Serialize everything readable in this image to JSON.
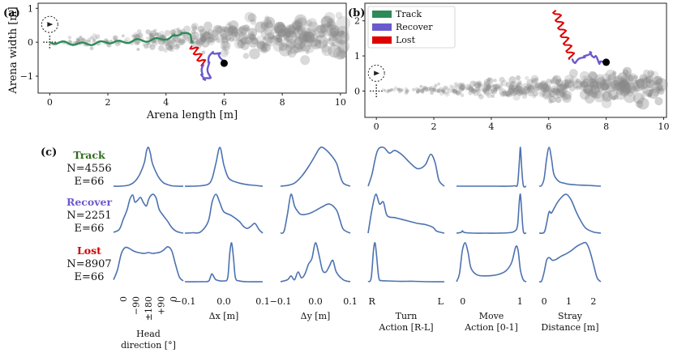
{
  "chart_data": [
    {
      "type": "scatter",
      "panel": "(a)",
      "xlabel": "Arena length [m]",
      "ylabel": "Arena width [m]",
      "xlim": [
        -0.4,
        10.2
      ],
      "ylim": [
        -1.5,
        1.15
      ],
      "xticks": [
        0,
        2,
        4,
        6,
        8,
        10
      ],
      "yticks": [
        -1,
        0,
        1
      ],
      "legend": "none",
      "series": [
        {
          "name": "Track",
          "color": "#2e8b57",
          "x": [
            0.0,
            0.5,
            1.0,
            1.5,
            2.0,
            2.5,
            3.0,
            3.5,
            4.0,
            4.3,
            4.55,
            4.8,
            4.95
          ],
          "y": [
            0.0,
            -0.02,
            -0.05,
            -0.04,
            0.01,
            0.0,
            0.05,
            0.06,
            0.12,
            0.18,
            0.3,
            0.2,
            0.0
          ]
        },
        {
          "name": "Lost",
          "color": "#e00000",
          "x": [
            4.9,
            5.0,
            5.1,
            5.2,
            5.3
          ],
          "y": [
            -0.1,
            -0.22,
            -0.37,
            -0.52,
            -0.65
          ]
        },
        {
          "name": "Recover",
          "color": "#6a5acd",
          "x": [
            5.3,
            5.25,
            5.3,
            5.5,
            5.45,
            5.6,
            5.85,
            6.0
          ],
          "y": [
            -0.65,
            -0.95,
            -1.12,
            -1.05,
            -0.6,
            -0.28,
            -0.35,
            -0.62
          ]
        }
      ],
      "end_marker": {
        "x": 6.0,
        "y": -0.62
      }
    },
    {
      "type": "scatter",
      "panel": "(b)",
      "xlabel": "",
      "ylabel": "",
      "xlim": [
        -0.4,
        10.1
      ],
      "ylim": [
        -0.75,
        2.5
      ],
      "xticks": [
        0,
        2,
        4,
        6,
        8,
        10
      ],
      "yticks": [
        0,
        1,
        2
      ],
      "legend": "top-left",
      "legend_entries": [
        "Track",
        "Recover",
        "Lost"
      ],
      "series": [
        {
          "name": "Lost",
          "color": "#e00000",
          "x": [
            6.25,
            6.38,
            6.52,
            6.68,
            6.82
          ],
          "y": [
            2.3,
            1.95,
            1.6,
            1.25,
            0.92
          ]
        },
        {
          "name": "Recover",
          "color": "#6a5acd",
          "x": [
            6.82,
            6.95,
            7.25,
            7.45,
            7.6,
            7.8,
            8.0
          ],
          "y": [
            0.92,
            0.82,
            0.97,
            1.12,
            0.97,
            0.8,
            0.82
          ]
        }
      ],
      "end_marker": {
        "x": 8.0,
        "y": 0.82
      }
    },
    {
      "type": "line",
      "panel": "(c)",
      "description_rows": [
        {
          "name": "Track",
          "n_label": "N=4556",
          "e_label": "E=66",
          "color": "#2e6b1e"
        },
        {
          "name": "Recover",
          "n_label": "N=2251",
          "e_label": "E=66",
          "color": "#6a5acd"
        },
        {
          "name": "Lost",
          "n_label": "N=8907",
          "e_label": "E=66",
          "color": "#d00000"
        }
      ],
      "columns": [
        {
          "xlabel": [
            "Head",
            "direction [°]"
          ],
          "xticks": [
            "0",
            "−90",
            "±180",
            "+90",
            "0"
          ],
          "xtick_rotation": 90,
          "xlim": [
            -180,
            180
          ]
        },
        {
          "xlabel": [
            "Δx [m]"
          ],
          "xticks": [
            "−0.1",
            "0.0",
            "0.1"
          ],
          "xlim": [
            -0.1,
            0.1
          ]
        },
        {
          "xlabel": [
            "Δy [m]"
          ],
          "xticks": [
            "−0.1",
            "0.0",
            "0.1"
          ],
          "xlim": [
            -0.1,
            0.1
          ]
        },
        {
          "xlabel": [
            "Turn",
            "Action [R-L]"
          ],
          "xticks": [
            "R",
            "L"
          ],
          "xlim": [
            0,
            1
          ]
        },
        {
          "xlabel": [
            "Move",
            "Action [0-1]"
          ],
          "xticks": [
            "0",
            "1"
          ],
          "xlim": [
            -0.1,
            1.1
          ]
        },
        {
          "xlabel": [
            "Stray",
            "Distance [m]"
          ],
          "xticks": [
            "0",
            "1",
            "2"
          ],
          "xlim": [
            -0.2,
            2.3
          ]
        }
      ],
      "density_curves": [
        [
          {
            "x": [
              -180,
              -150,
              -120,
              -100,
              -80,
              -60,
              -40,
              -20,
              -10,
              0,
              10,
              20,
              40,
              60,
              80,
              100,
              120,
              150,
              180
            ],
            "y": [
              0.0,
              0.0,
              0.01,
              0.03,
              0.08,
              0.18,
              0.35,
              0.62,
              0.9,
              1.0,
              0.85,
              0.6,
              0.35,
              0.18,
              0.08,
              0.04,
              0.01,
              0.0,
              0.0
            ]
          },
          {
            "x": [
              -180,
              -150,
              -130,
              -110,
              -95,
              -80,
              -70,
              -55,
              -40,
              -25,
              -10,
              0,
              10,
              25,
              40,
              55,
              70,
              85,
              100,
              120,
              140,
              160,
              180
            ],
            "y": [
              0.02,
              0.1,
              0.35,
              0.6,
              0.88,
              0.98,
              0.8,
              0.85,
              0.92,
              0.78,
              0.7,
              0.85,
              0.95,
              1.0,
              0.9,
              0.62,
              0.5,
              0.4,
              0.3,
              0.15,
              0.06,
              0.02,
              0.0
            ]
          },
          {
            "x": [
              -180,
              -160,
              -140,
              -120,
              -100,
              -80,
              -60,
              -40,
              -20,
              0,
              20,
              40,
              60,
              80,
              100,
              120,
              140,
              160,
              180
            ],
            "y": [
              0.05,
              0.3,
              0.72,
              0.88,
              0.86,
              0.8,
              0.76,
              0.74,
              0.73,
              0.75,
              0.73,
              0.74,
              0.76,
              0.82,
              0.9,
              0.8,
              0.45,
              0.12,
              0.02
            ]
          }
        ],
        [
          {
            "x": [
              -0.1,
              -0.08,
              -0.06,
              -0.04,
              -0.03,
              -0.02,
              -0.01,
              0.0,
              0.01,
              0.02,
              0.04,
              0.06,
              0.08,
              0.1
            ],
            "y": [
              0.0,
              0.0,
              0.01,
              0.05,
              0.2,
              0.6,
              1.0,
              0.55,
              0.25,
              0.15,
              0.08,
              0.04,
              0.02,
              0.0
            ]
          },
          {
            "x": [
              -0.1,
              -0.08,
              -0.06,
              -0.04,
              -0.03,
              -0.02,
              -0.01,
              0.0,
              0.02,
              0.04,
              0.05,
              0.06,
              0.07,
              0.08,
              0.09,
              0.1
            ],
            "y": [
              0.0,
              0.01,
              0.03,
              0.3,
              0.8,
              1.0,
              0.78,
              0.55,
              0.45,
              0.3,
              0.18,
              0.12,
              0.18,
              0.25,
              0.1,
              0.0
            ]
          },
          {
            "x": [
              -0.1,
              -0.06,
              -0.04,
              -0.035,
              -0.03,
              -0.02,
              0.0,
              0.01,
              0.015,
              0.02,
              0.025,
              0.03,
              0.04,
              0.06,
              0.1
            ],
            "y": [
              0.0,
              0.0,
              0.01,
              0.1,
              0.2,
              0.05,
              0.02,
              0.1,
              0.7,
              1.0,
              0.6,
              0.1,
              0.02,
              0.0,
              0.0
            ]
          }
        ],
        [
          {
            "x": [
              -0.1,
              -0.08,
              -0.06,
              -0.04,
              -0.02,
              0.0,
              0.01,
              0.02,
              0.04,
              0.06,
              0.07,
              0.08,
              0.1
            ],
            "y": [
              0.0,
              0.02,
              0.08,
              0.25,
              0.5,
              0.8,
              0.95,
              1.0,
              0.85,
              0.6,
              0.3,
              0.08,
              0.0
            ]
          },
          {
            "x": [
              -0.1,
              -0.09,
              -0.08,
              -0.07,
              -0.06,
              -0.05,
              -0.04,
              -0.02,
              0.0,
              0.02,
              0.04,
              0.06,
              0.07,
              0.08,
              0.1
            ],
            "y": [
              0.0,
              0.05,
              0.5,
              1.0,
              0.7,
              0.55,
              0.48,
              0.5,
              0.58,
              0.68,
              0.75,
              0.6,
              0.35,
              0.1,
              0.0
            ]
          },
          {
            "x": [
              -0.1,
              -0.08,
              -0.07,
              -0.06,
              -0.05,
              -0.04,
              -0.03,
              -0.02,
              -0.01,
              0.0,
              0.01,
              0.02,
              0.03,
              0.04,
              0.05,
              0.06,
              0.08,
              0.1
            ],
            "y": [
              0.0,
              0.05,
              0.15,
              0.05,
              0.25,
              0.1,
              0.2,
              0.45,
              0.6,
              1.0,
              0.7,
              0.3,
              0.25,
              0.4,
              0.55,
              0.25,
              0.05,
              0.0
            ]
          }
        ],
        [
          {
            "x": [
              0.0,
              0.05,
              0.12,
              0.2,
              0.28,
              0.35,
              0.45,
              0.55,
              0.65,
              0.75,
              0.82,
              0.88,
              0.93,
              1.0
            ],
            "y": [
              0.0,
              0.3,
              0.9,
              1.0,
              0.85,
              0.92,
              0.8,
              0.6,
              0.45,
              0.55,
              0.82,
              0.6,
              0.15,
              0.0
            ]
          },
          {
            "x": [
              0.0,
              0.05,
              0.1,
              0.15,
              0.2,
              0.25,
              0.35,
              0.45,
              0.55,
              0.65,
              0.75,
              0.85,
              0.9,
              1.0
            ],
            "y": [
              0.0,
              0.6,
              1.0,
              0.75,
              0.8,
              0.45,
              0.4,
              0.35,
              0.3,
              0.25,
              0.22,
              0.15,
              0.05,
              0.0
            ]
          },
          {
            "x": [
              0.0,
              0.04,
              0.07,
              0.09,
              0.11,
              0.14,
              0.18,
              0.25,
              0.4,
              0.6,
              0.8,
              1.0
            ],
            "y": [
              0.0,
              0.1,
              0.8,
              1.0,
              0.7,
              0.1,
              0.03,
              0.02,
              0.01,
              0.01,
              0.0,
              0.0
            ]
          }
        ],
        [
          {
            "x": [
              -0.1,
              0.0,
              0.2,
              0.4,
              0.6,
              0.8,
              0.9,
              0.95,
              0.98,
              1.0,
              1.02,
              1.05,
              1.1
            ],
            "y": [
              0.0,
              0.0,
              0.0,
              0.0,
              0.0,
              0.0,
              0.01,
              0.05,
              0.6,
              1.0,
              0.5,
              0.02,
              0.0
            ]
          },
          {
            "x": [
              -0.1,
              -0.02,
              0.0,
              0.02,
              0.06,
              0.2,
              0.4,
              0.6,
              0.8,
              0.9,
              0.95,
              0.98,
              1.0,
              1.02,
              1.05,
              1.1
            ],
            "y": [
              0.0,
              0.02,
              0.06,
              0.03,
              0.01,
              0.0,
              0.0,
              0.0,
              0.01,
              0.05,
              0.2,
              0.8,
              1.0,
              0.6,
              0.05,
              0.0
            ]
          },
          {
            "x": [
              -0.1,
              -0.05,
              0.0,
              0.05,
              0.1,
              0.15,
              0.25,
              0.4,
              0.6,
              0.75,
              0.85,
              0.92,
              0.96,
              1.0,
              1.05,
              1.1
            ],
            "y": [
              0.0,
              0.2,
              0.8,
              1.0,
              0.75,
              0.35,
              0.18,
              0.15,
              0.18,
              0.28,
              0.5,
              0.9,
              0.8,
              0.3,
              0.05,
              0.0
            ]
          }
        ],
        [
          {
            "x": [
              -0.2,
              -0.1,
              0.0,
              0.1,
              0.2,
              0.3,
              0.4,
              0.6,
              0.8,
              1.0,
              1.4,
              1.8,
              2.3
            ],
            "y": [
              0.0,
              0.02,
              0.2,
              0.7,
              1.0,
              0.7,
              0.3,
              0.12,
              0.08,
              0.05,
              0.03,
              0.02,
              0.0
            ]
          },
          {
            "x": [
              -0.2,
              0.0,
              0.1,
              0.2,
              0.3,
              0.5,
              0.7,
              0.9,
              1.1,
              1.3,
              1.5,
              1.7,
              2.0,
              2.3
            ],
            "y": [
              0.0,
              0.02,
              0.25,
              0.55,
              0.52,
              0.75,
              0.92,
              1.0,
              0.85,
              0.55,
              0.3,
              0.12,
              0.03,
              0.0
            ]
          },
          {
            "x": [
              -0.2,
              -0.1,
              0.0,
              0.1,
              0.2,
              0.35,
              0.5,
              0.7,
              0.9,
              1.1,
              1.3,
              1.5,
              1.7,
              1.85,
              2.0,
              2.15,
              2.3
            ],
            "y": [
              0.0,
              0.02,
              0.25,
              0.55,
              0.62,
              0.55,
              0.58,
              0.66,
              0.72,
              0.8,
              0.9,
              0.97,
              1.0,
              0.8,
              0.45,
              0.1,
              0.0
            ]
          }
        ]
      ]
    }
  ]
}
